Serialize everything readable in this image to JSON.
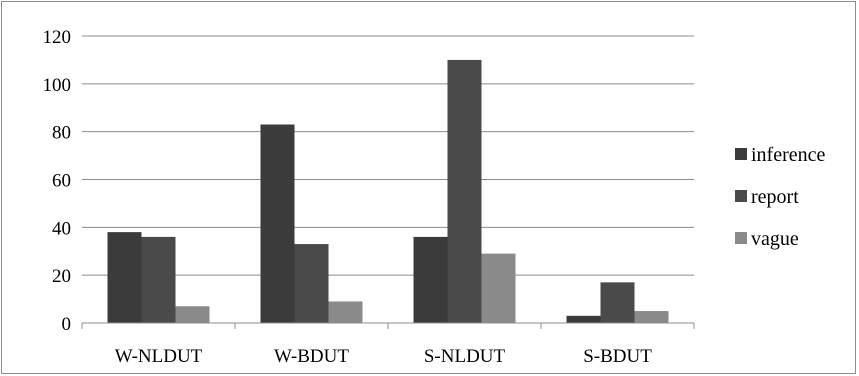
{
  "chart_data": {
    "type": "bar",
    "categories": [
      "W-NLDUT",
      "W-BDUT",
      "S-NLDUT",
      "S-BDUT"
    ],
    "series": [
      {
        "name": "inference",
        "values": [
          38,
          83,
          36,
          3
        ],
        "color": "#3b3b3b"
      },
      {
        "name": "report",
        "values": [
          36,
          33,
          110,
          17
        ],
        "color": "#4a4a4a"
      },
      {
        "name": "vague",
        "values": [
          7,
          9,
          29,
          5
        ],
        "color": "#8a8a8a"
      }
    ],
    "y_ticks": [
      "0",
      "20",
      "40",
      "60",
      "80",
      "100",
      "120"
    ],
    "ylim": [
      0,
      120
    ],
    "grid": true,
    "legend_position": "right",
    "title": "",
    "xlabel": "",
    "ylabel": ""
  }
}
